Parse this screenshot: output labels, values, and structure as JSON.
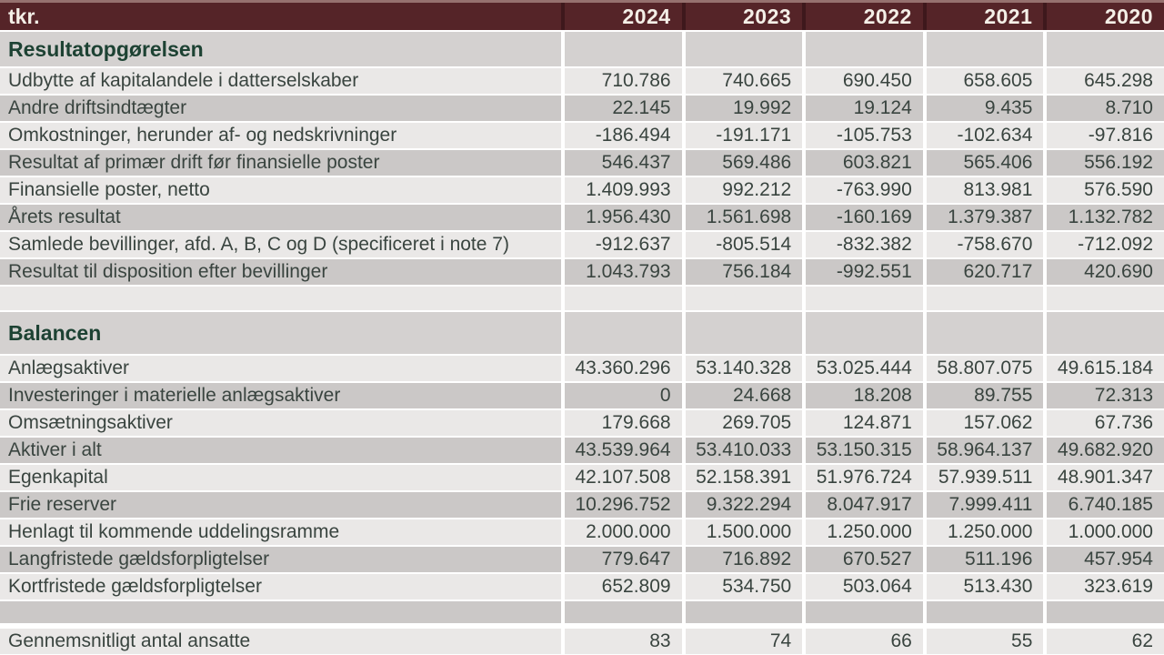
{
  "header": {
    "unit_label": "tkr.",
    "years": [
      "2024",
      "2023",
      "2022",
      "2021",
      "2020"
    ]
  },
  "colors": {
    "header_bg": "#552428",
    "header_sep": "#3e181c",
    "header_top": "#96716f",
    "header_text": "#f4efe7",
    "section_text": "#1d4233",
    "row_text": "#39443f",
    "light_row": "#eae8e7",
    "dark_row": "#cbc8c7",
    "section_row": "#d4d1d0",
    "page_bg": "#ffffff"
  },
  "table": {
    "rows": [
      {
        "kind": "section",
        "label": "Resultatopgørelsen",
        "values": [
          "",
          "",
          "",
          "",
          ""
        ]
      },
      {
        "kind": "data",
        "label": "Udbytte af kapitalandele i datterselskaber",
        "values": [
          "710.786",
          "740.665",
          "690.450",
          "658.605",
          "645.298"
        ]
      },
      {
        "kind": "data",
        "label": "Andre driftsindtægter",
        "values": [
          "22.145",
          "19.992",
          "19.124",
          "9.435",
          "8.710"
        ]
      },
      {
        "kind": "data",
        "label": "Omkostninger, herunder af- og nedskrivninger",
        "values": [
          "-186.494",
          "-191.171",
          "-105.753",
          "-102.634",
          "-97.816"
        ]
      },
      {
        "kind": "data",
        "label": "Resultat af primær drift før finansielle poster",
        "values": [
          "546.437",
          "569.486",
          "603.821",
          "565.406",
          "556.192"
        ]
      },
      {
        "kind": "data",
        "label": "Finansielle poster, netto",
        "values": [
          "1.409.993",
          "992.212",
          "-763.990",
          "813.981",
          "576.590"
        ]
      },
      {
        "kind": "data",
        "label": "Årets resultat",
        "values": [
          "1.956.430",
          "1.561.698",
          "-160.169",
          "1.379.387",
          "1.132.782"
        ]
      },
      {
        "kind": "data",
        "label": "Samlede bevillinger, afd. A, B, C og D (specificeret i note 7)",
        "values": [
          "-912.637",
          "-805.514",
          "-832.382",
          "-758.670",
          "-712.092"
        ]
      },
      {
        "kind": "data",
        "label": "Resultat til disposition efter bevillinger",
        "values": [
          "1.043.793",
          "756.184",
          "-992.551",
          "620.717",
          "420.690"
        ]
      },
      {
        "kind": "empty",
        "label": "",
        "values": [
          "",
          "",
          "",
          "",
          ""
        ]
      },
      {
        "kind": "section",
        "label": "Balancen",
        "values": [
          "",
          "",
          "",
          "",
          ""
        ]
      },
      {
        "kind": "data",
        "label": "Anlægsaktiver",
        "values": [
          "43.360.296",
          "53.140.328",
          "53.025.444",
          "58.807.075",
          "49.615.184"
        ]
      },
      {
        "kind": "data",
        "label": "Investeringer i materielle anlægsaktiver",
        "values": [
          "0",
          "24.668",
          "18.208",
          "89.755",
          "72.313"
        ]
      },
      {
        "kind": "data",
        "label": "Omsætningsaktiver",
        "values": [
          "179.668",
          "269.705",
          "124.871",
          "157.062",
          "67.736"
        ]
      },
      {
        "kind": "data",
        "label": "Aktiver i alt",
        "values": [
          "43.539.964",
          "53.410.033",
          "53.150.315",
          "58.964.137",
          "49.682.920"
        ]
      },
      {
        "kind": "data",
        "label": "Egenkapital",
        "values": [
          "42.107.508",
          "52.158.391",
          "51.976.724",
          "57.939.511",
          "48.901.347"
        ]
      },
      {
        "kind": "data",
        "label": "Frie reserver",
        "values": [
          "10.296.752",
          "9.322.294",
          "8.047.917",
          "7.999.411",
          "6.740.185"
        ]
      },
      {
        "kind": "data",
        "label": "Henlagt til kommende uddelingsramme",
        "values": [
          "2.000.000",
          "1.500.000",
          "1.250.000",
          "1.250.000",
          "1.000.000"
        ]
      },
      {
        "kind": "data",
        "label": "Langfristede gældsforpligtelser",
        "values": [
          "779.647",
          "716.892",
          "670.527",
          "511.196",
          "457.954"
        ]
      },
      {
        "kind": "data",
        "label": "Kortfristede gældsforpligtelser",
        "values": [
          "652.809",
          "534.750",
          "503.064",
          "513.430",
          "323.619"
        ]
      },
      {
        "kind": "empty",
        "label": "",
        "values": [
          "",
          "",
          "",
          "",
          ""
        ]
      },
      {
        "kind": "data",
        "label": "Gennemsnitligt antal ansatte",
        "values": [
          "83",
          "74",
          "66",
          "55",
          "62"
        ]
      }
    ]
  }
}
